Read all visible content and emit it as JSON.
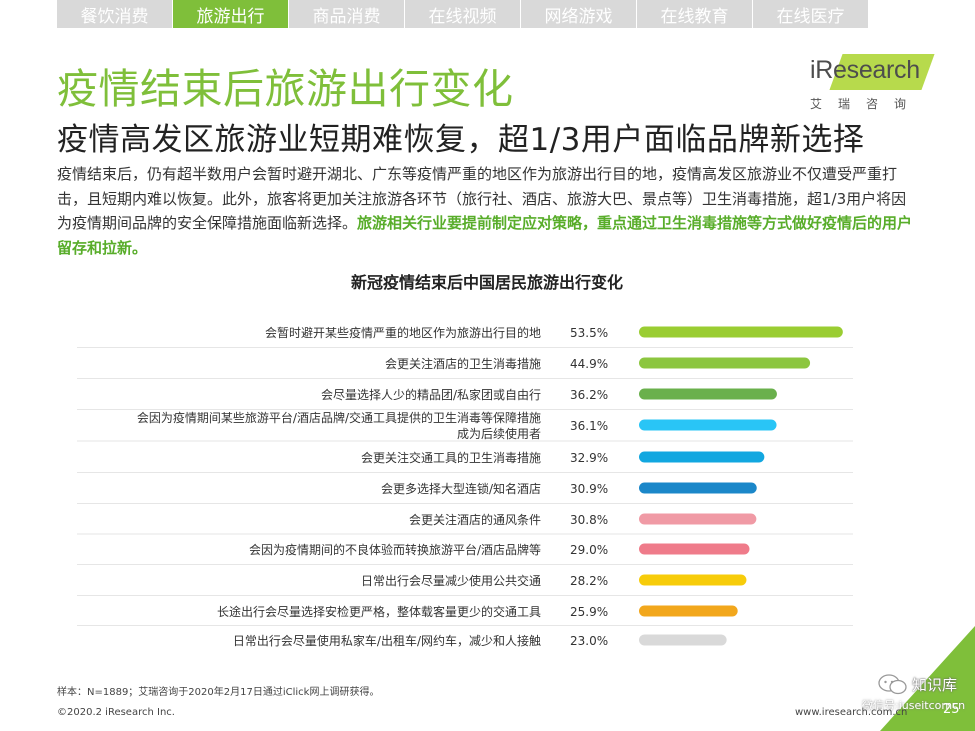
{
  "tabs": [
    {
      "label": "餐饮消费",
      "active": false
    },
    {
      "label": "旅游出行",
      "active": true
    },
    {
      "label": "商品消费",
      "active": false
    },
    {
      "label": "在线视频",
      "active": false
    },
    {
      "label": "网络游戏",
      "active": false
    },
    {
      "label": "在线教育",
      "active": false
    },
    {
      "label": "在线医疗",
      "active": false
    }
  ],
  "logo": {
    "dot": "i",
    "name": "Research",
    "cn": "艾瑞咨询"
  },
  "title": "疫情结束后旅游出行变化",
  "subtitle": "疫情高发区旅游业短期难恢复，超1/3用户面临品牌新选择",
  "description": {
    "normal": "疫情结束后，仍有超半数用户会暂时避开湖北、广东等疫情严重的地区作为旅游出行目的地，疫情高发区旅游业不仅遭受严重打击，且短期内难以恢复。此外，旅客将更加关注旅游各环节（旅行社、酒店、旅游大巴、景点等）卫生消毒措施，超1/3用户将因为疫情期间品牌的安全保障措施面临新选择。",
    "highlight": "旅游相关行业要提前制定应对策略，重点通过卫生消毒措施等方式做好疫情后的用户留存和拉新。"
  },
  "chart_data": {
    "type": "bar",
    "orientation": "horizontal",
    "title": "新冠疫情结束后中国居民旅游出行变化",
    "value_unit": "%",
    "xlim": [
      0,
      100
    ],
    "categories": [
      [
        "会暂时避开某些疫情严重的地区作为旅游出行目的地"
      ],
      [
        "会更关注酒店的卫生消毒措施"
      ],
      [
        "会尽量选择人少的精品团/私家团或自由行"
      ],
      [
        "会因为疫情期间某些旅游平台/酒店品牌/交通工具提供的卫生消毒等保障措施",
        "成为后续使用者"
      ],
      [
        "会更关注交通工具的卫生消毒措施"
      ],
      [
        "会更多选择大型连锁/知名酒店"
      ],
      [
        "会更关注酒店的通风条件"
      ],
      [
        "会因为疫情期间的不良体验而转换旅游平台/酒店品牌等"
      ],
      [
        "日常出行会尽量减少使用公共交通"
      ],
      [
        "长途出行会尽量选择安检更严格，整体载客量更少的交通工具"
      ],
      [
        "日常出行会尽量使用私家车/出租车/网约车，减少和人接触"
      ]
    ],
    "values": [
      53.5,
      44.9,
      36.2,
      36.1,
      32.9,
      30.9,
      30.8,
      29.0,
      28.2,
      25.9,
      23.0
    ],
    "value_labels": [
      "53.5%",
      "44.9%",
      "36.2%",
      "36.1%",
      "32.9%",
      "30.9%",
      "30.8%",
      "29.0%",
      "28.2%",
      "25.9%",
      "23.0%"
    ],
    "colors": [
      "#9acd32",
      "#8cc63f",
      "#6ab04c",
      "#29c5f6",
      "#12a7e0",
      "#1b87c9",
      "#f09aa5",
      "#ef7b8a",
      "#f7cc0a",
      "#f2a71c",
      "#d9d9d9"
    ]
  },
  "footer": {
    "note": "样本：N=1889；艾瑞咨询于2020年2月17日通过iClick网上调研获得。",
    "copyright": "©2020.2 iResearch Inc.",
    "url": "www.iresearch.com.cn",
    "page": "25"
  },
  "watermark": {
    "name": "知识库",
    "sub": "微信号:iuseitcomcn"
  },
  "colors": {
    "accent_green": "#7fbf3a",
    "tab_gray": "#d9d9d9",
    "corner_green": "#7fbf3a"
  }
}
